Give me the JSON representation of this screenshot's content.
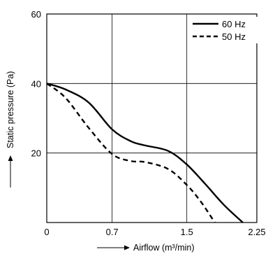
{
  "chart_data": {
    "type": "line",
    "title": "",
    "xlabel": "Airflow (m³/min)",
    "ylabel": "Static pressure (Pa)",
    "xlim": [
      0,
      2.25
    ],
    "ylim": [
      0,
      60
    ],
    "x_ticks": [
      0,
      0.7,
      1.5,
      2.25
    ],
    "y_ticks": [
      20,
      40,
      60
    ],
    "x_tick_labels": [
      "0",
      "0.7",
      "1.5",
      "2.25"
    ],
    "y_tick_labels": [
      "20",
      "40",
      "60"
    ],
    "grid": true,
    "legend_position": "top-right",
    "series": [
      {
        "name": "60 Hz",
        "style": "solid",
        "color": "#000000",
        "points": [
          [
            0,
            40
          ],
          [
            0.2,
            38.3
          ],
          [
            0.45,
            34.5
          ],
          [
            0.7,
            26.8
          ],
          [
            0.9,
            23.4
          ],
          [
            1.05,
            22.2
          ],
          [
            1.3,
            20.6
          ],
          [
            1.5,
            16.7
          ],
          [
            1.7,
            11.0
          ],
          [
            1.9,
            5.0
          ],
          [
            2.1,
            0
          ]
        ]
      },
      {
        "name": "50 Hz",
        "style": "dashed",
        "color": "#000000",
        "points": [
          [
            0,
            40
          ],
          [
            0.2,
            35.9
          ],
          [
            0.45,
            27.2
          ],
          [
            0.7,
            19.7
          ],
          [
            0.9,
            17.7
          ],
          [
            1.05,
            17.4
          ],
          [
            1.3,
            15.4
          ],
          [
            1.5,
            10.8
          ],
          [
            1.65,
            6.0
          ],
          [
            1.8,
            0
          ]
        ]
      }
    ]
  }
}
